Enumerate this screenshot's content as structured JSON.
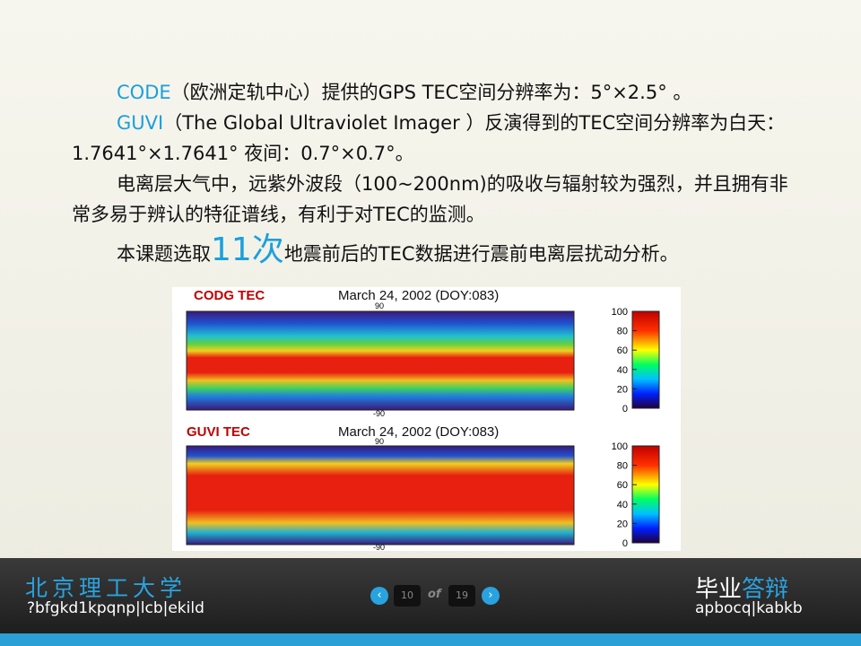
{
  "slide": {
    "paragraphs": [
      {
        "highlight": "CODE",
        "text": "（欧洲定轨中心）提供的GPS TEC空间分辨率为：5°×2.5° 。"
      },
      {
        "highlight": "GUVI",
        "text": "（The Global Ultraviolet Imager ）反演得到的TEC空间分辨率为白天：1.7641°×1.7641° 夜间：0.7°×0.7°。"
      },
      {
        "text": "电离层大气中，远紫外波段（100~200nm)的吸收与辐射较为强烈，并且拥有非常多易于辨认的特征谱线，有利于对TEC的监测。"
      },
      {
        "before": "本课题选取",
        "highlight": "11次",
        "after": "地震前后的TEC数据进行震前电离层扰动分析。"
      }
    ],
    "figure": {
      "panels": [
        {
          "name": "CODG TEC",
          "date": "March 24, 2002 (DOY:083)",
          "lat_top": "90",
          "lat_bottom": "-90"
        },
        {
          "name": "GUVI TEC",
          "date": "March 24, 2002 (DOY:083)",
          "lat_top": "90",
          "lat_bottom": "-90"
        }
      ],
      "colorbar_ticks": [
        100,
        80,
        60,
        40,
        20,
        0
      ],
      "colorbar_range": [
        0,
        100
      ]
    },
    "footer": {
      "school": "北京理工大学",
      "school_en": "?bfgkd1kpqnp|lcb|ekild",
      "page": "10",
      "of": "of",
      "total": "19",
      "title_a": "毕业",
      "title_b": "答辩",
      "title_en": "apbocq|kabkb"
    }
  }
}
